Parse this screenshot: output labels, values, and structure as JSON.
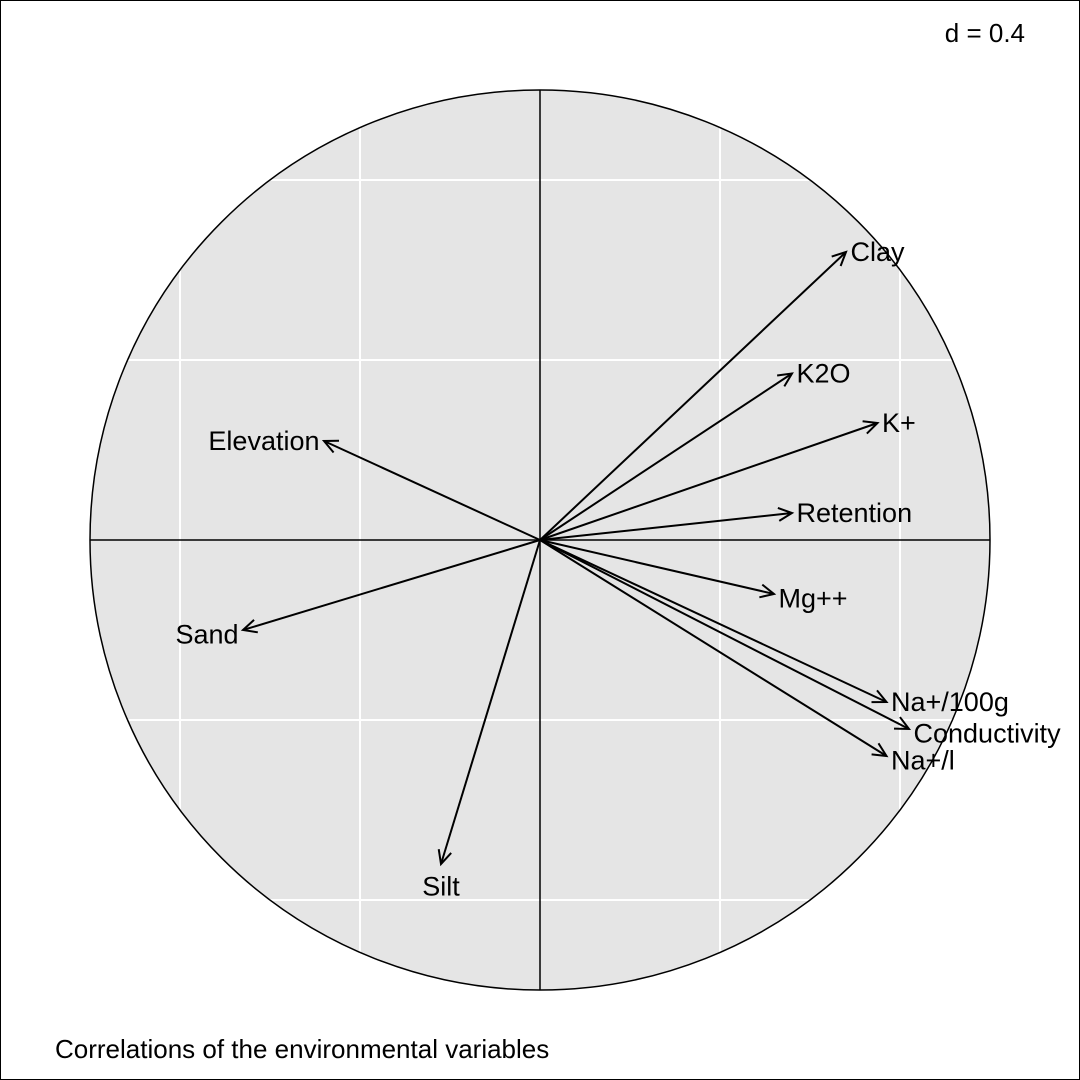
{
  "chart_data": {
    "type": "correlation-circle",
    "title": "Correlations of the environmental variables",
    "grid_label": "d = 0.4",
    "grid_step": 0.4,
    "radius": 1,
    "background": "#e5e5e5",
    "grid_color": "#ffffff",
    "line_color": "#000000",
    "variables": [
      {
        "name": "Clay",
        "x": 0.68,
        "y": 0.64,
        "label_anchor": "start",
        "label_dx": 0.01,
        "label_dy": 0.0
      },
      {
        "name": "K2O",
        "x": 0.56,
        "y": 0.37,
        "label_anchor": "start",
        "label_dx": 0.01,
        "label_dy": 0.0
      },
      {
        "name": "K+",
        "x": 0.75,
        "y": 0.26,
        "label_anchor": "start",
        "label_dx": 0.01,
        "label_dy": 0.0
      },
      {
        "name": "Retention",
        "x": 0.56,
        "y": 0.06,
        "label_anchor": "start",
        "label_dx": 0.01,
        "label_dy": 0.0
      },
      {
        "name": "Mg++",
        "x": 0.52,
        "y": -0.12,
        "label_anchor": "start",
        "label_dx": 0.01,
        "label_dy": -0.01
      },
      {
        "name": "Na+/100g",
        "x": 0.77,
        "y": -0.36,
        "label_anchor": "start",
        "label_dx": 0.01,
        "label_dy": 0.0
      },
      {
        "name": "Conductivity",
        "x": 0.82,
        "y": -0.42,
        "label_anchor": "start",
        "label_dx": 0.01,
        "label_dy": -0.01
      },
      {
        "name": "Na+/l",
        "x": 0.77,
        "y": -0.48,
        "label_anchor": "start",
        "label_dx": 0.01,
        "label_dy": -0.01
      },
      {
        "name": "Elevation",
        "x": -0.48,
        "y": 0.22,
        "label_anchor": "end",
        "label_dx": -0.01,
        "label_dy": 0.0
      },
      {
        "name": "Sand",
        "x": -0.66,
        "y": -0.2,
        "label_anchor": "end",
        "label_dx": -0.01,
        "label_dy": -0.01
      },
      {
        "name": "Silt",
        "x": -0.22,
        "y": -0.72,
        "label_anchor": "middle",
        "label_dx": 0.0,
        "label_dy": -0.05
      }
    ]
  }
}
